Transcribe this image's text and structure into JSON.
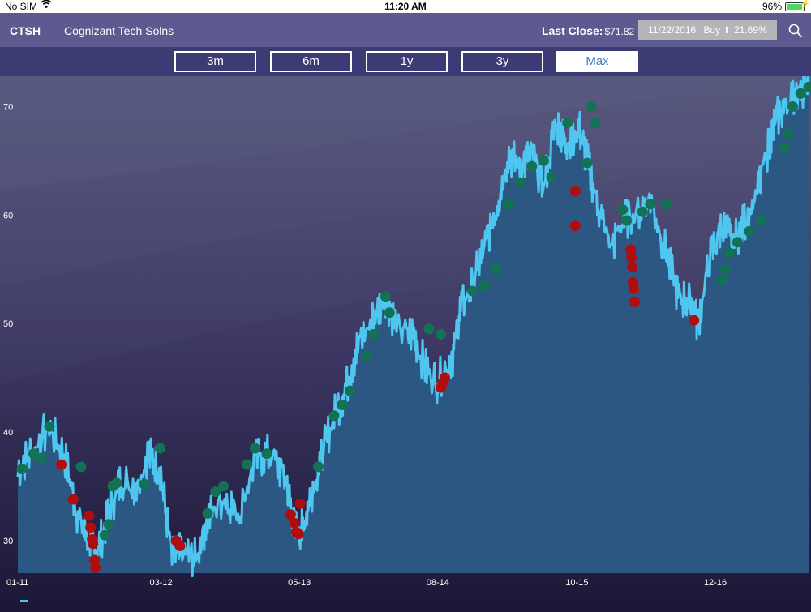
{
  "status_bar": {
    "carrier": "No SIM",
    "time": "11:20 AM",
    "battery": "96%"
  },
  "header": {
    "ticker": "CTSH",
    "company": "Cognizant Tech Solns",
    "last_close_label": "Last Close:",
    "last_close_value": "$71.82",
    "signal_date": "11/22/2016",
    "signal_action": "Buy",
    "signal_pct": "21.69%"
  },
  "ranges": [
    {
      "label": "3m",
      "active": false
    },
    {
      "label": "6m",
      "active": false
    },
    {
      "label": "1y",
      "active": false
    },
    {
      "label": "3y",
      "active": false
    },
    {
      "label": "Max",
      "active": true
    }
  ],
  "colors": {
    "price_line": "#4ec6f0",
    "area_fill": "#2c5783",
    "buy_marker": "#137154",
    "sell_marker": "#b00e0e"
  },
  "chart_data": {
    "type": "area",
    "ylim": [
      27,
      72.8
    ],
    "yticks": [
      30,
      40,
      50,
      60,
      70
    ],
    "xticks": [
      {
        "label": "01-11",
        "pos": 0.0
      },
      {
        "label": "03-12",
        "pos": 0.181
      },
      {
        "label": "05-13",
        "pos": 0.356
      },
      {
        "label": "08-14",
        "pos": 0.531
      },
      {
        "label": "10-15",
        "pos": 0.707
      },
      {
        "label": "12-16",
        "pos": 0.882
      }
    ],
    "series": [
      {
        "x": [
          0.0,
          0.02,
          0.04,
          0.06,
          0.075,
          0.09,
          0.1,
          0.115,
          0.13,
          0.15,
          0.165,
          0.18,
          0.195,
          0.21,
          0.225,
          0.24,
          0.26,
          0.28,
          0.3,
          0.32,
          0.34,
          0.35,
          0.36,
          0.37,
          0.385,
          0.4,
          0.415,
          0.43,
          0.45,
          0.465,
          0.48,
          0.5,
          0.515,
          0.53,
          0.55,
          0.56,
          0.575,
          0.59,
          0.605,
          0.62,
          0.635,
          0.65,
          0.665,
          0.68,
          0.69,
          0.7,
          0.71,
          0.72,
          0.735,
          0.75,
          0.765,
          0.78,
          0.8,
          0.82,
          0.835,
          0.85,
          0.86,
          0.875,
          0.89,
          0.905,
          0.92,
          0.935,
          0.95,
          0.96,
          0.975,
          0.99,
          1.0
        ],
        "y": [
          36.5,
          38.5,
          40.5,
          37.5,
          32.5,
          30.0,
          28.8,
          32.5,
          35.5,
          35.0,
          38.0,
          36.5,
          28.5,
          29.0,
          28.3,
          32.0,
          34.0,
          32.5,
          37.5,
          38.0,
          35.5,
          31.0,
          31.0,
          34.0,
          38.0,
          41.5,
          44.0,
          48.0,
          50.5,
          52.5,
          49.5,
          49.0,
          46.0,
          44.5,
          47.0,
          51.5,
          53.5,
          57.0,
          60.5,
          65.5,
          64.5,
          65.5,
          62.5,
          68.5,
          67.0,
          66.5,
          68.0,
          65.0,
          60.5,
          57.0,
          59.5,
          60.0,
          61.5,
          56.5,
          52.5,
          52.0,
          50.0,
          56.0,
          59.0,
          57.5,
          59.5,
          62.0,
          66.5,
          69.0,
          70.5,
          71.8,
          71.8
        ]
      }
    ],
    "buy_signals": [
      [
        0.005,
        36.6
      ],
      [
        0.02,
        38.0
      ],
      [
        0.03,
        37.6
      ],
      [
        0.04,
        40.5
      ],
      [
        0.08,
        36.8
      ],
      [
        0.11,
        30.5
      ],
      [
        0.115,
        31.5
      ],
      [
        0.12,
        35.0
      ],
      [
        0.125,
        35.3
      ],
      [
        0.16,
        35.2
      ],
      [
        0.18,
        38.5
      ],
      [
        0.24,
        32.5
      ],
      [
        0.25,
        34.5
      ],
      [
        0.26,
        35.0
      ],
      [
        0.29,
        37.0
      ],
      [
        0.3,
        38.5
      ],
      [
        0.315,
        38.0
      ],
      [
        0.38,
        36.8
      ],
      [
        0.4,
        41.5
      ],
      [
        0.41,
        42.5
      ],
      [
        0.42,
        43.8
      ],
      [
        0.44,
        47.0
      ],
      [
        0.45,
        49.0
      ],
      [
        0.465,
        52.5
      ],
      [
        0.47,
        51.0
      ],
      [
        0.52,
        49.5
      ],
      [
        0.535,
        49.0
      ],
      [
        0.575,
        53.0
      ],
      [
        0.59,
        53.5
      ],
      [
        0.605,
        55.0
      ],
      [
        0.62,
        61.0
      ],
      [
        0.635,
        63.0
      ],
      [
        0.65,
        64.5
      ],
      [
        0.665,
        65.0
      ],
      [
        0.675,
        63.5
      ],
      [
        0.695,
        68.5
      ],
      [
        0.72,
        64.8
      ],
      [
        0.725,
        70.0
      ],
      [
        0.73,
        68.5
      ],
      [
        0.765,
        60.5
      ],
      [
        0.77,
        59.5
      ],
      [
        0.79,
        60.3
      ],
      [
        0.8,
        61.0
      ],
      [
        0.82,
        61.0
      ],
      [
        0.89,
        54.0
      ],
      [
        0.895,
        55.0
      ],
      [
        0.9,
        56.5
      ],
      [
        0.91,
        57.5
      ],
      [
        0.925,
        58.5
      ],
      [
        0.94,
        59.5
      ],
      [
        0.97,
        66.2
      ],
      [
        0.975,
        67.5
      ],
      [
        0.98,
        70.0
      ],
      [
        0.99,
        71.2
      ],
      [
        1.0,
        71.8
      ]
    ],
    "sell_signals": [
      [
        0.055,
        37.0
      ],
      [
        0.07,
        33.8
      ],
      [
        0.09,
        32.3
      ],
      [
        0.092,
        31.2
      ],
      [
        0.094,
        30.1
      ],
      [
        0.095,
        29.7
      ],
      [
        0.097,
        28.2
      ],
      [
        0.098,
        27.5
      ],
      [
        0.2,
        30.0
      ],
      [
        0.205,
        29.5
      ],
      [
        0.345,
        32.4
      ],
      [
        0.35,
        31.6
      ],
      [
        0.352,
        30.8
      ],
      [
        0.355,
        30.6
      ],
      [
        0.357,
        33.4
      ],
      [
        0.535,
        44.1
      ],
      [
        0.538,
        44.6
      ],
      [
        0.54,
        45.0
      ],
      [
        0.705,
        62.2
      ],
      [
        0.705,
        59.0
      ],
      [
        0.775,
        56.8
      ],
      [
        0.776,
        56.1
      ],
      [
        0.777,
        55.2
      ],
      [
        0.778,
        53.8
      ],
      [
        0.779,
        53.2
      ],
      [
        0.78,
        52.0
      ],
      [
        0.855,
        50.3
      ]
    ]
  }
}
